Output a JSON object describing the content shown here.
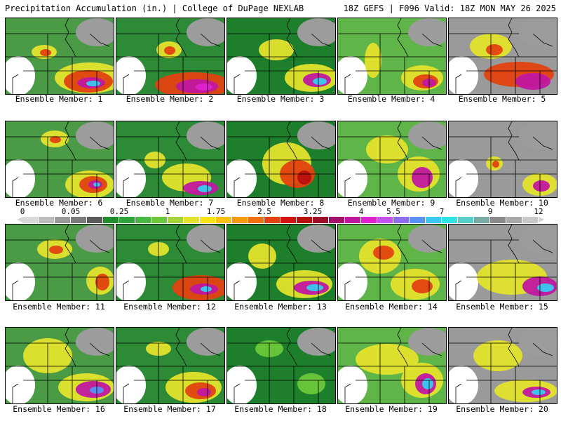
{
  "header": {
    "title": "Precipitation Accumulation (in.) | College of DuPage NEXLAB",
    "run_info": "18Z GEFS | F096 Valid: 18Z MON MAY 26 2025"
  },
  "colorbar": {
    "tick_labels": [
      "0",
      "0.05",
      "0.25",
      "1",
      "1.75",
      "2.5",
      "3.25",
      "4",
      "5.5",
      "7",
      "9",
      "12"
    ],
    "colors": [
      "#d9d9d9",
      "#bdbdbd",
      "#9a9a9a",
      "#7a7a7a",
      "#5a5a5a",
      "#1f8c2e",
      "#2ea53a",
      "#47b843",
      "#6cc83a",
      "#a7d23a",
      "#e3e32c",
      "#f7e21a",
      "#fbbf14",
      "#f79a10",
      "#f06f0e",
      "#e3420f",
      "#d31313",
      "#b8100f",
      "#9b0f2c",
      "#a3126a",
      "#c117a0",
      "#df22d0",
      "#c651ee",
      "#8f6cf2",
      "#5a91f5",
      "#39c9f0",
      "#2fe4e4",
      "#58cfc8",
      "#7aaaa4",
      "#8a8a8a",
      "#aaaaaa",
      "#c9c9c9"
    ]
  },
  "caption_prefix": "Ensemble Member:",
  "members": [
    {
      "id": "1"
    },
    {
      "id": "2"
    },
    {
      "id": "3"
    },
    {
      "id": "4"
    },
    {
      "id": "5"
    },
    {
      "id": "6"
    },
    {
      "id": "7"
    },
    {
      "id": "8"
    },
    {
      "id": "9"
    },
    {
      "id": "10"
    },
    {
      "id": "11"
    },
    {
      "id": "12"
    },
    {
      "id": "13"
    },
    {
      "id": "14"
    },
    {
      "id": "15"
    },
    {
      "id": "16"
    },
    {
      "id": "17"
    },
    {
      "id": "18"
    },
    {
      "id": "19"
    },
    {
      "id": "20"
    }
  ]
}
